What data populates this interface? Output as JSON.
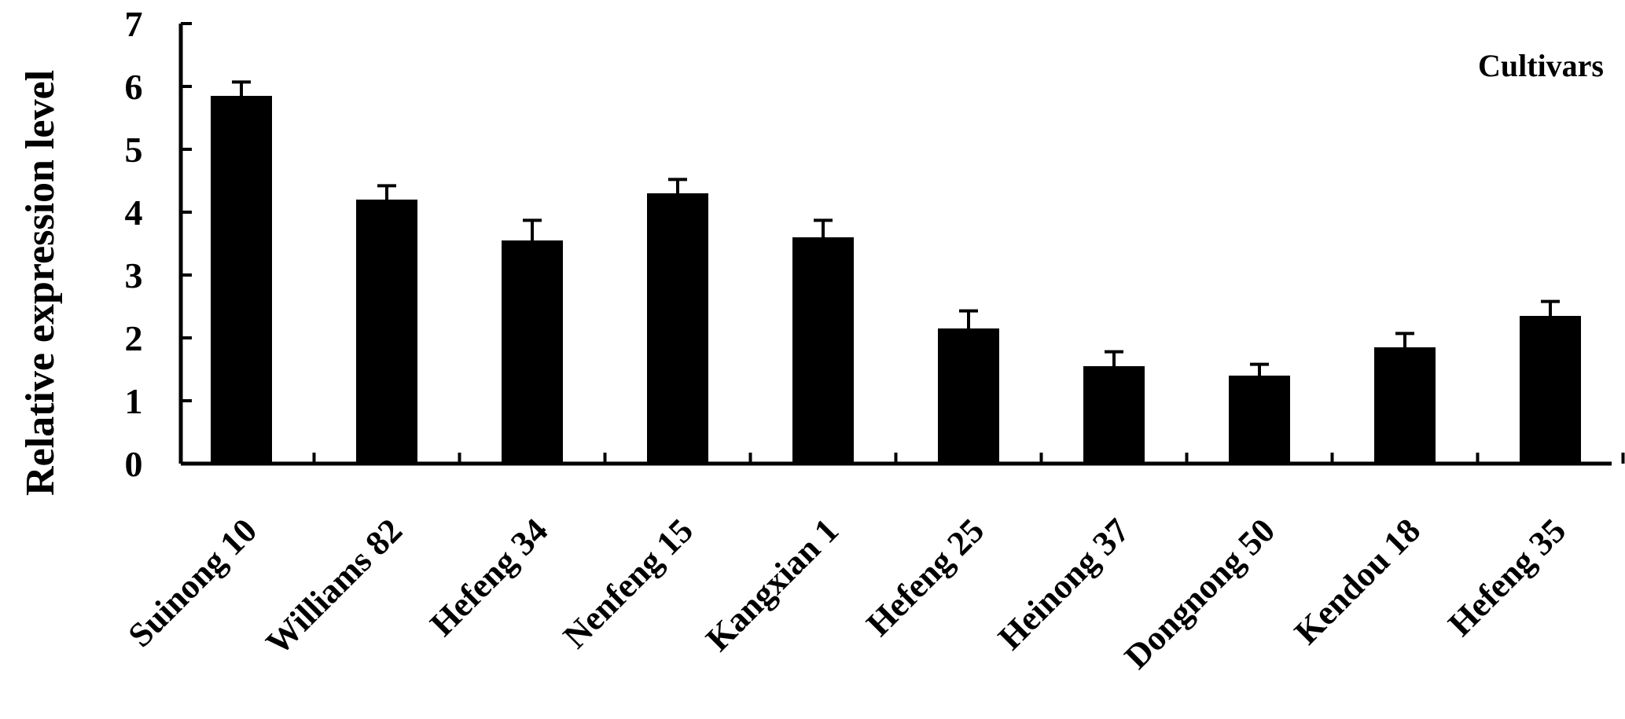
{
  "chart_data": {
    "type": "bar",
    "title": "",
    "xlabel": "",
    "ylabel": "Relative expression level",
    "annotation": "Cultivars",
    "categories": [
      "Suinong 10",
      "Williams 82",
      "Hefeng 34",
      "Nenfeng 15",
      "Kangxian 1",
      "Hefeng 25",
      "Heinong 37",
      "Dongnong 50",
      "Kendou 18",
      "Hefeng 35"
    ],
    "values": [
      5.85,
      4.2,
      3.55,
      4.3,
      3.6,
      2.15,
      1.55,
      1.4,
      1.85,
      2.35
    ],
    "errors": [
      0.22,
      0.22,
      0.32,
      0.22,
      0.27,
      0.28,
      0.23,
      0.18,
      0.22,
      0.23
    ],
    "ylim": [
      0,
      7
    ],
    "yticks": [
      "0",
      "1",
      "2",
      "3",
      "4",
      "5",
      "6",
      "7"
    ],
    "bar_color": "#000000",
    "grid": false,
    "legend": "none"
  }
}
